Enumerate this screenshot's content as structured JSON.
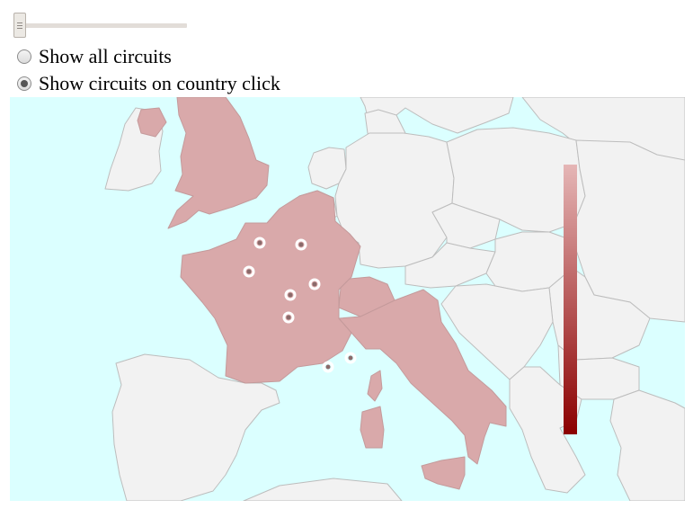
{
  "slider": {
    "label": "mode slider"
  },
  "options": [
    {
      "label": "Show all circuits",
      "checked": false
    },
    {
      "label": "Show circuits on country click",
      "checked": true
    }
  ],
  "map": {
    "water_color": "#dbffff",
    "land_color": "#f2f2f2",
    "selected_color": "#d9a9aa",
    "border_color": "#bdbdbd",
    "highlighted_countries": [
      "United Kingdom",
      "France",
      "Switzerland",
      "Italy"
    ],
    "circuit_marker_count": 8
  },
  "legend": {
    "gradient_start": "#e5b6b6",
    "gradient_end": "#8b0000"
  }
}
